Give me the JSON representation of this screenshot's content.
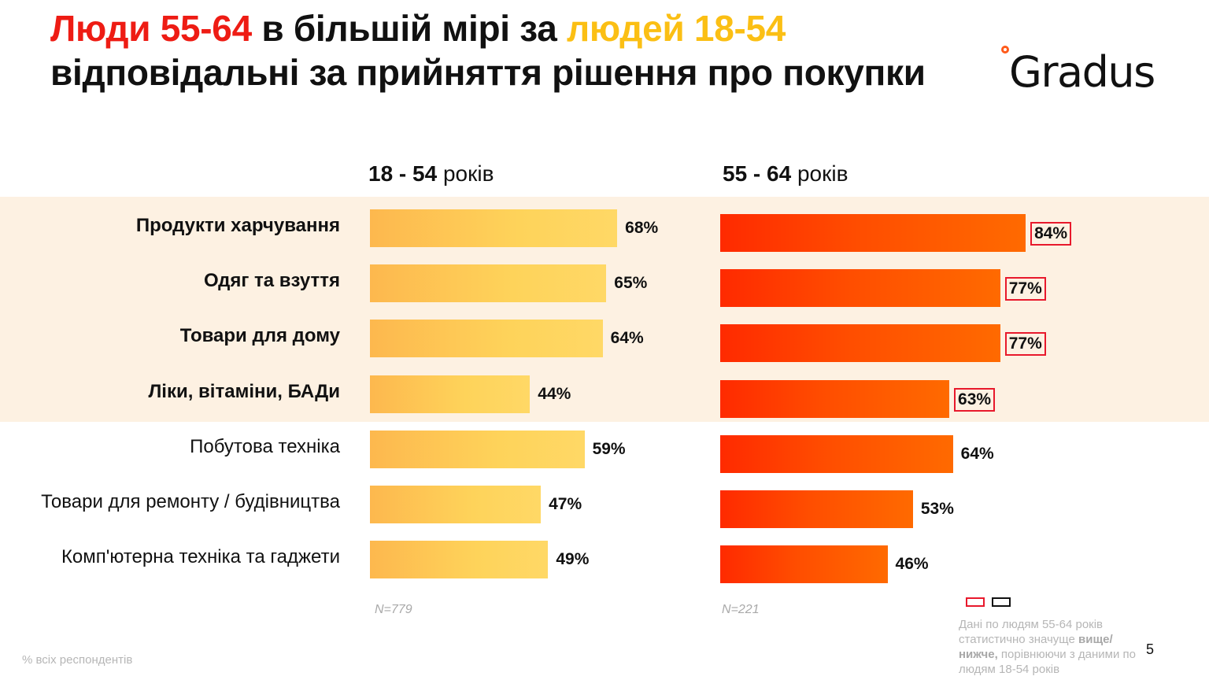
{
  "title": {
    "part1": "Люди 55-64",
    "part2": " в більшій мірі за ",
    "part3": "людей 18-54",
    "part4": " відповідальні за прийняття рішення про покупки"
  },
  "logo": {
    "text": "Gradus",
    "icon": "ring-dot-icon"
  },
  "colors": {
    "title_red": "#ee1c14",
    "title_yellow": "#fbbf14",
    "bar_18_54": "#fed35a",
    "bar_55_64": "#ff4d00",
    "highlight_band": "#fdf1e2",
    "significance_box": "#e8192c"
  },
  "chart_data": {
    "type": "bar",
    "orientation": "horizontal",
    "title": "Люди 55-64 в більшій мірі за людей 18-54 відповідальні за прийняття рішення про покупки",
    "categories": [
      "Продукти харчування",
      "Одяг та взуття",
      "Товари для дому",
      "Ліки, вітаміни, БАДи",
      "Побутова техніка",
      "Товари для ремонту / будівництва",
      "Комп'ютерна техніка та гаджети"
    ],
    "highlighted_categories": [
      0,
      1,
      2,
      3
    ],
    "series": [
      {
        "name": "18 - 54 років",
        "name_bold": "18 - 54",
        "name_rest": " років",
        "n": "N=779",
        "values": [
          68,
          65,
          64,
          44,
          59,
          47,
          49
        ],
        "labels": [
          "68%",
          "65%",
          "64%",
          "44%",
          "59%",
          "47%",
          "49%"
        ],
        "significant_higher": [
          false,
          false,
          false,
          false,
          false,
          false,
          false
        ]
      },
      {
        "name": "55 - 64 років",
        "name_bold": "55 - 64",
        "name_rest": " років",
        "n": "N=221",
        "values": [
          84,
          77,
          77,
          63,
          64,
          53,
          46
        ],
        "labels": [
          "84%",
          "77%",
          "77%",
          "63%",
          "64%",
          "53%",
          "46%"
        ],
        "significant_higher": [
          true,
          true,
          true,
          true,
          false,
          false,
          false
        ]
      }
    ],
    "xlabel": "",
    "ylabel": "",
    "xlim": [
      0,
      100
    ],
    "unit": "% всіх респондентів",
    "grid": false
  },
  "footnote": "% всіх респондентів",
  "legend": {
    "text_1": "Дані по людям 55-64 років статистично значуще ",
    "text_bold": "вище/нижче,",
    "text_2": " порівнюючи з даними по людям 18-54 років"
  },
  "page_number": "5"
}
